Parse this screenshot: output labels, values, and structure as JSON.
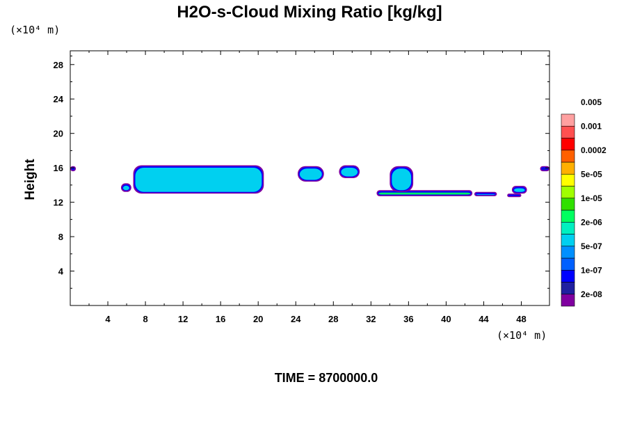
{
  "chart_data": {
    "type": "heatmap",
    "title": "H2O-s-Cloud Mixing Ratio [kg/kg]",
    "ylabel": "Height",
    "x_unit": "(×10⁴ m)",
    "y_unit": "(×10⁴ m)",
    "time_label": "TIME = 8700000.0",
    "xlim": [
      0,
      51
    ],
    "ylim": [
      0,
      29.6
    ],
    "xticks": [
      4,
      8,
      12,
      16,
      20,
      24,
      28,
      32,
      36,
      40,
      44,
      48
    ],
    "yticks": [
      4,
      8,
      12,
      16,
      20,
      24,
      28
    ],
    "colorbar": {
      "colors": [
        "#8000a0",
        "#2020a0",
        "#0000ff",
        "#0060ff",
        "#0090ff",
        "#00d0f0",
        "#00f0c0",
        "#00ff60",
        "#30e000",
        "#a0ff00",
        "#ffff00",
        "#ffb000",
        "#ff6000",
        "#ff0000",
        "#ff5050",
        "#ffa0a0"
      ],
      "labels": [
        "2e-08",
        "1e-07",
        "5e-07",
        "2e-06",
        "1e-05",
        "5e-05",
        "0.0002",
        "0.001",
        "0.005"
      ]
    },
    "cloud_regions": [
      {
        "x_start": 0,
        "x_end": 0.6,
        "y_bottom": 15.6,
        "y_top": 16.2,
        "level": "2e-08"
      },
      {
        "x_start": 5.4,
        "x_end": 6.5,
        "y_bottom": 13.2,
        "y_top": 14.2,
        "level": "5e-07"
      },
      {
        "x_start": 6.7,
        "x_end": 20.6,
        "y_bottom": 13.0,
        "y_top": 16.3,
        "level": "5e-07"
      },
      {
        "x_start": 24.2,
        "x_end": 27.0,
        "y_bottom": 14.4,
        "y_top": 16.2,
        "level": "5e-07"
      },
      {
        "x_start": 28.6,
        "x_end": 30.8,
        "y_bottom": 14.8,
        "y_top": 16.3,
        "level": "5e-07"
      },
      {
        "x_start": 32.6,
        "x_end": 42.8,
        "y_bottom": 12.7,
        "y_top": 13.4,
        "level": "2e-06"
      },
      {
        "x_start": 34.0,
        "x_end": 36.5,
        "y_bottom": 13.2,
        "y_top": 16.2,
        "level": "5e-07"
      },
      {
        "x_start": 43.0,
        "x_end": 45.4,
        "y_bottom": 12.7,
        "y_top": 13.2,
        "level": "5e-07"
      },
      {
        "x_start": 46.5,
        "x_end": 48.0,
        "y_bottom": 12.6,
        "y_top": 13.0,
        "level": "5e-07"
      },
      {
        "x_start": 47.0,
        "x_end": 48.6,
        "y_bottom": 13.0,
        "y_top": 13.9,
        "level": "5e-07"
      },
      {
        "x_start": 50.0,
        "x_end": 51.0,
        "y_bottom": 15.6,
        "y_top": 16.2,
        "level": "2e-08"
      }
    ]
  }
}
